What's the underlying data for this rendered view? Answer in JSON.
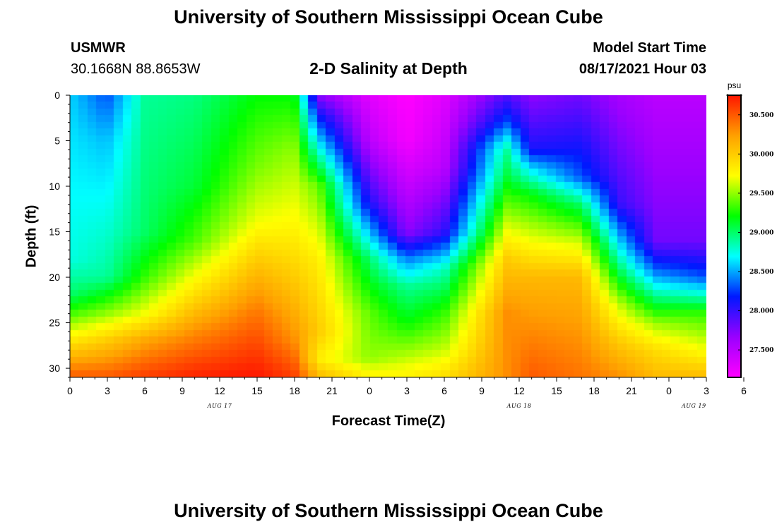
{
  "header": {
    "title": "University of Southern Mississippi Ocean Cube",
    "station": "USMWR",
    "coords": "30.1668N  88.8653W",
    "subtitle": "2-D Salinity at Depth",
    "model_label": "Model Start Time",
    "model_time": "08/17/2021 Hour 03"
  },
  "footer": {
    "title": "University of Southern Mississippi Ocean Cube"
  },
  "colors": {
    "scale": [
      "#ff00ff",
      "#9a00ff",
      "#0018ff",
      "#00ffff",
      "#00ff00",
      "#ffff00",
      "#ffa000",
      "#ff1500"
    ]
  },
  "chart_data": {
    "type": "heatmap",
    "title": "2-D Salinity at Depth",
    "xlabel": "Forecast Time(Z)",
    "ylabel": "Depth (ft)",
    "x_hours": [
      0,
      51
    ],
    "ylim": [
      0,
      31
    ],
    "x_tick_labels": [
      "0",
      "3",
      "6",
      "9",
      "12",
      "15",
      "18",
      "21",
      "0",
      "3",
      "6",
      "9",
      "12",
      "15",
      "18",
      "21",
      "0",
      "3",
      "6"
    ],
    "date_labels": [
      {
        "label": "AUG  17",
        "hour": 12
      },
      {
        "label": "AUG  18",
        "hour": 36
      },
      {
        "label": "AUG  19",
        "hour": 50
      }
    ],
    "y_ticks": [
      0,
      5,
      10,
      15,
      20,
      25,
      30
    ],
    "colorbar": {
      "unit": "psu",
      "range": [
        27.15,
        30.75
      ],
      "ticks": [
        "27.500",
        "28.000",
        "28.500",
        "29.000",
        "29.500",
        "30.000",
        "30.500"
      ]
    },
    "salinity_profiles": [
      {
        "hour": 0,
        "depths": [
          0,
          18,
          22,
          25,
          28,
          31
        ],
        "values": [
          28.6,
          28.75,
          29.0,
          29.5,
          30.0,
          30.5
        ]
      },
      {
        "hour": 3,
        "depths": [
          0,
          5,
          20,
          24,
          27,
          31
        ],
        "values": [
          28.3,
          28.55,
          28.9,
          29.5,
          30.0,
          30.5
        ]
      },
      {
        "hour": 6,
        "depths": [
          0,
          15,
          20,
          24,
          27,
          31
        ],
        "values": [
          28.9,
          29.0,
          29.3,
          29.7,
          30.2,
          30.6
        ]
      },
      {
        "hour": 10,
        "depths": [
          0,
          10,
          16,
          22,
          26,
          31
        ],
        "values": [
          28.95,
          29.1,
          29.35,
          29.9,
          30.3,
          30.7
        ]
      },
      {
        "hour": 15,
        "depths": [
          0,
          8,
          14,
          18,
          24,
          31
        ],
        "values": [
          29.2,
          29.45,
          29.7,
          30.0,
          30.4,
          30.75
        ]
      },
      {
        "hour": 18,
        "depths": [
          0,
          6,
          14,
          20,
          27,
          31
        ],
        "values": [
          29.2,
          29.5,
          29.75,
          30.0,
          30.3,
          30.6
        ]
      },
      {
        "hour": 20,
        "depths": [
          0,
          2,
          10,
          18,
          26,
          29,
          31
        ],
        "values": [
          27.7,
          28.1,
          29.4,
          29.8,
          30.0,
          29.8,
          30.1
        ]
      },
      {
        "hour": 24,
        "depths": [
          0,
          5,
          12,
          18,
          24,
          29,
          31
        ],
        "values": [
          27.3,
          27.5,
          28.1,
          29.0,
          29.4,
          29.5,
          29.8
        ]
      },
      {
        "hour": 27,
        "depths": [
          0,
          5,
          15,
          18,
          21,
          25,
          28,
          31
        ],
        "values": [
          27.15,
          27.2,
          27.7,
          28.4,
          28.9,
          29.2,
          29.5,
          29.8
        ]
      },
      {
        "hour": 30,
        "depths": [
          0,
          8,
          15,
          19,
          24,
          28,
          31
        ],
        "values": [
          27.3,
          27.5,
          28.0,
          28.8,
          29.3,
          29.6,
          29.9
        ]
      },
      {
        "hour": 35,
        "depths": [
          0,
          3,
          6,
          9,
          13,
          18,
          24,
          31
        ],
        "values": [
          27.9,
          28.3,
          28.9,
          29.1,
          29.5,
          30.0,
          30.3,
          30.3
        ]
      },
      {
        "hour": 37,
        "depths": [
          0,
          6,
          8,
          11,
          16,
          20,
          31
        ],
        "values": [
          27.7,
          28.1,
          28.6,
          29.2,
          29.7,
          30.1,
          30.5
        ]
      },
      {
        "hour": 41,
        "depths": [
          0,
          9,
          12,
          16,
          20,
          31
        ],
        "values": [
          27.8,
          28.3,
          29.0,
          29.6,
          30.1,
          30.4
        ]
      },
      {
        "hour": 44,
        "depths": [
          0,
          12,
          16,
          19,
          23,
          27,
          31
        ],
        "values": [
          27.6,
          28.0,
          28.6,
          29.0,
          29.6,
          30.0,
          30.3
        ]
      },
      {
        "hour": 47,
        "depths": [
          0,
          16,
          19,
          22,
          25,
          28,
          31
        ],
        "values": [
          27.5,
          27.8,
          28.3,
          28.9,
          29.5,
          29.9,
          30.1
        ]
      },
      {
        "hour": 51,
        "depths": [
          0,
          16,
          20,
          22,
          24,
          28,
          31
        ],
        "values": [
          27.5,
          27.8,
          28.3,
          28.8,
          29.3,
          29.7,
          30.1
        ]
      }
    ]
  }
}
